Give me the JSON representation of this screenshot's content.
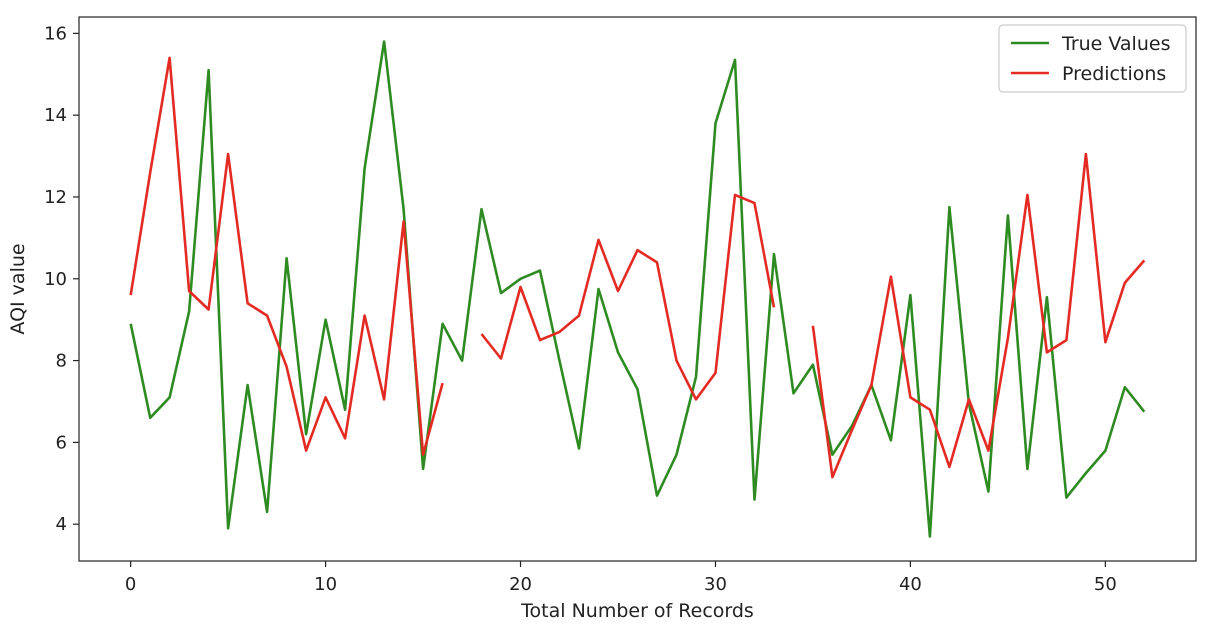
{
  "chart_data": {
    "type": "line",
    "title": "",
    "xlabel": "Total Number of Records",
    "ylabel": "AQI value",
    "xlim": [
      -2.65,
      54.65
    ],
    "ylim": [
      3.1,
      16.4
    ],
    "xticks": [
      0,
      10,
      20,
      30,
      40,
      50
    ],
    "yticks": [
      4,
      6,
      8,
      10,
      12,
      14,
      16
    ],
    "grid": false,
    "legend_position": "top-right",
    "series": [
      {
        "name": "True Values",
        "color": "#2e8b22",
        "x": [
          0,
          1,
          2,
          3,
          4,
          5,
          6,
          7,
          8,
          9,
          10,
          11,
          12,
          13,
          14,
          15,
          16,
          17,
          18,
          19,
          20,
          21,
          22,
          23,
          24,
          25,
          26,
          27,
          28,
          29,
          30,
          31,
          32,
          33,
          34,
          35,
          36,
          37,
          38,
          39,
          40,
          41,
          42,
          43,
          44,
          45,
          46,
          47,
          48,
          49,
          50,
          51,
          52
        ],
        "values": [
          8.9,
          6.6,
          7.1,
          9.2,
          15.1,
          3.9,
          7.4,
          4.3,
          10.5,
          6.2,
          9.0,
          6.8,
          12.7,
          15.8,
          11.7,
          5.35,
          8.9,
          8.0,
          11.7,
          9.65,
          10.0,
          10.2,
          8.0,
          5.85,
          9.75,
          8.2,
          7.3,
          4.7,
          5.7,
          7.6,
          13.8,
          15.35,
          4.6,
          10.6,
          7.2,
          7.9,
          5.7,
          6.4,
          7.4,
          6.05,
          9.6,
          3.7,
          11.75,
          6.95,
          4.8,
          11.55,
          5.35,
          9.55,
          4.65,
          5.25,
          5.8,
          7.35,
          6.75
        ]
      },
      {
        "name": "Predictions",
        "color": "#e32b23",
        "x": [
          0,
          1,
          2,
          3,
          4,
          5,
          6,
          7,
          8,
          9,
          10,
          11,
          12,
          13,
          14,
          15,
          16,
          17,
          18,
          19,
          20,
          21,
          22,
          23,
          24,
          25,
          26,
          27,
          28,
          29,
          30,
          31,
          32,
          33,
          34,
          35,
          36,
          37,
          38,
          39,
          40,
          41,
          42,
          43,
          44,
          45,
          46,
          47,
          48,
          49,
          50,
          51,
          52
        ],
        "values": [
          9.6,
          12.6,
          15.4,
          9.7,
          9.25,
          13.05,
          9.4,
          9.1,
          7.85,
          5.8,
          7.1,
          6.1,
          9.1,
          7.05,
          11.4,
          5.7,
          7.45,
          null,
          8.65,
          8.05,
          9.8,
          8.5,
          8.7,
          9.1,
          10.95,
          9.7,
          10.7,
          10.4,
          8.0,
          7.05,
          7.7,
          12.05,
          11.85,
          9.3,
          null,
          8.85,
          5.15,
          6.3,
          7.4,
          10.05,
          7.1,
          6.8,
          5.4,
          7.05,
          5.8,
          8.55,
          12.05,
          8.2,
          8.5,
          13.05,
          8.45,
          9.9,
          10.45
        ]
      }
    ]
  }
}
